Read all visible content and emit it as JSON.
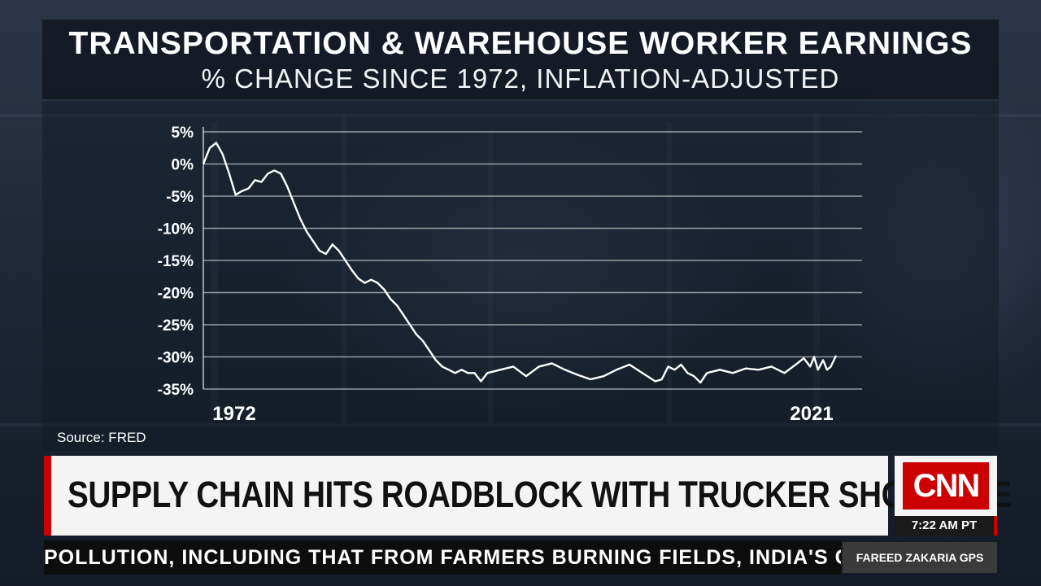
{
  "graphic": {
    "title": "TRANSPORTATION & WAREHOUSE WORKER EARNINGS",
    "subtitle": "% CHANGE SINCE 1972, INFLATION-ADJUSTED",
    "source": "Source: FRED"
  },
  "chart_data": {
    "type": "line",
    "title": "TRANSPORTATION & WAREHOUSE WORKER EARNINGS",
    "subtitle": "% CHANGE SINCE 1972, INFLATION-ADJUSTED",
    "xlabel": "",
    "ylabel": "",
    "xlim": [
      1972,
      2021
    ],
    "ylim": [
      -35,
      5
    ],
    "yticks": [
      5,
      0,
      -5,
      -10,
      -15,
      -20,
      -25,
      -30,
      -35
    ],
    "ytick_labels": [
      "5%",
      "0%",
      "-5%",
      "-10%",
      "-15%",
      "-20%",
      "-25%",
      "-30%",
      "-35%"
    ],
    "xtick_labels": [
      "1972",
      "2021"
    ],
    "grid": true,
    "line_color": "#ffffff",
    "series": [
      {
        "x": [
          1972,
          1972.5,
          1973,
          1973.5,
          1974,
          1974.5,
          1975,
          1975.5,
          1976,
          1976.5,
          1977,
          1977.5,
          1978,
          1978.5,
          1979,
          1979.5,
          1980,
          1980.5,
          1981,
          1981.5,
          1982,
          1982.5,
          1983,
          1983.5,
          1984,
          1984.5,
          1985,
          1985.5,
          1986,
          1986.5,
          1987,
          1987.5,
          1988,
          1988.5,
          1989,
          1989.5,
          1990,
          1990.5,
          1991,
          1991.5,
          1992,
          1992.5,
          1993,
          1993.5,
          1994,
          1995,
          1996,
          1997,
          1998,
          1999,
          2000,
          2001,
          2002,
          2003,
          2004,
          2005,
          2006,
          2007,
          2007.5,
          2008,
          2008.5,
          2009,
          2009.5,
          2010,
          2010.5,
          2011,
          2012,
          2013,
          2014,
          2015,
          2016,
          2017,
          2018,
          2018.5,
          2019,
          2019.3,
          2019.6,
          2020,
          2020.3,
          2020.6,
          2021
        ],
        "y": [
          0,
          2.5,
          3.3,
          1.5,
          -1.5,
          -4.8,
          -4.2,
          -3.8,
          -2.5,
          -2.8,
          -1.5,
          -1.0,
          -1.5,
          -3.5,
          -6.0,
          -8.5,
          -10.5,
          -12.0,
          -13.5,
          -14.0,
          -12.5,
          -13.5,
          -15.0,
          -16.5,
          -17.8,
          -18.5,
          -18.0,
          -18.5,
          -19.5,
          -21.0,
          -22.0,
          -23.5,
          -25.0,
          -26.5,
          -27.5,
          -29.0,
          -30.5,
          -31.5,
          -32.0,
          -32.5,
          -32.0,
          -32.5,
          -32.5,
          -33.8,
          -32.5,
          -32.0,
          -31.5,
          -33.0,
          -31.5,
          -31.0,
          -32.0,
          -32.8,
          -33.5,
          -33.0,
          -32.0,
          -31.2,
          -32.5,
          -33.8,
          -33.5,
          -31.5,
          -32.0,
          -31.2,
          -32.5,
          -33.0,
          -34.0,
          -32.5,
          -32.0,
          -32.5,
          -31.8,
          -32.0,
          -31.5,
          -32.5,
          -31.0,
          -30.2,
          -31.5,
          -30.0,
          -32.0,
          -30.5,
          -32.0,
          -31.5,
          -29.8
        ]
      }
    ]
  },
  "lower_third": {
    "headline": "SUPPLY CHAIN HITS ROADBLOCK WITH TRUCKER SHORTAGE",
    "logo": "CNN",
    "time": "7:22 AM PT",
    "ticker": "POLLUTION, INCLUDING THAT FROM FARMERS BURNING FIELDS, INDIA'S CEN",
    "show": "FAREED ZAKARIA GPS",
    "brand_color": "#cc0000"
  }
}
